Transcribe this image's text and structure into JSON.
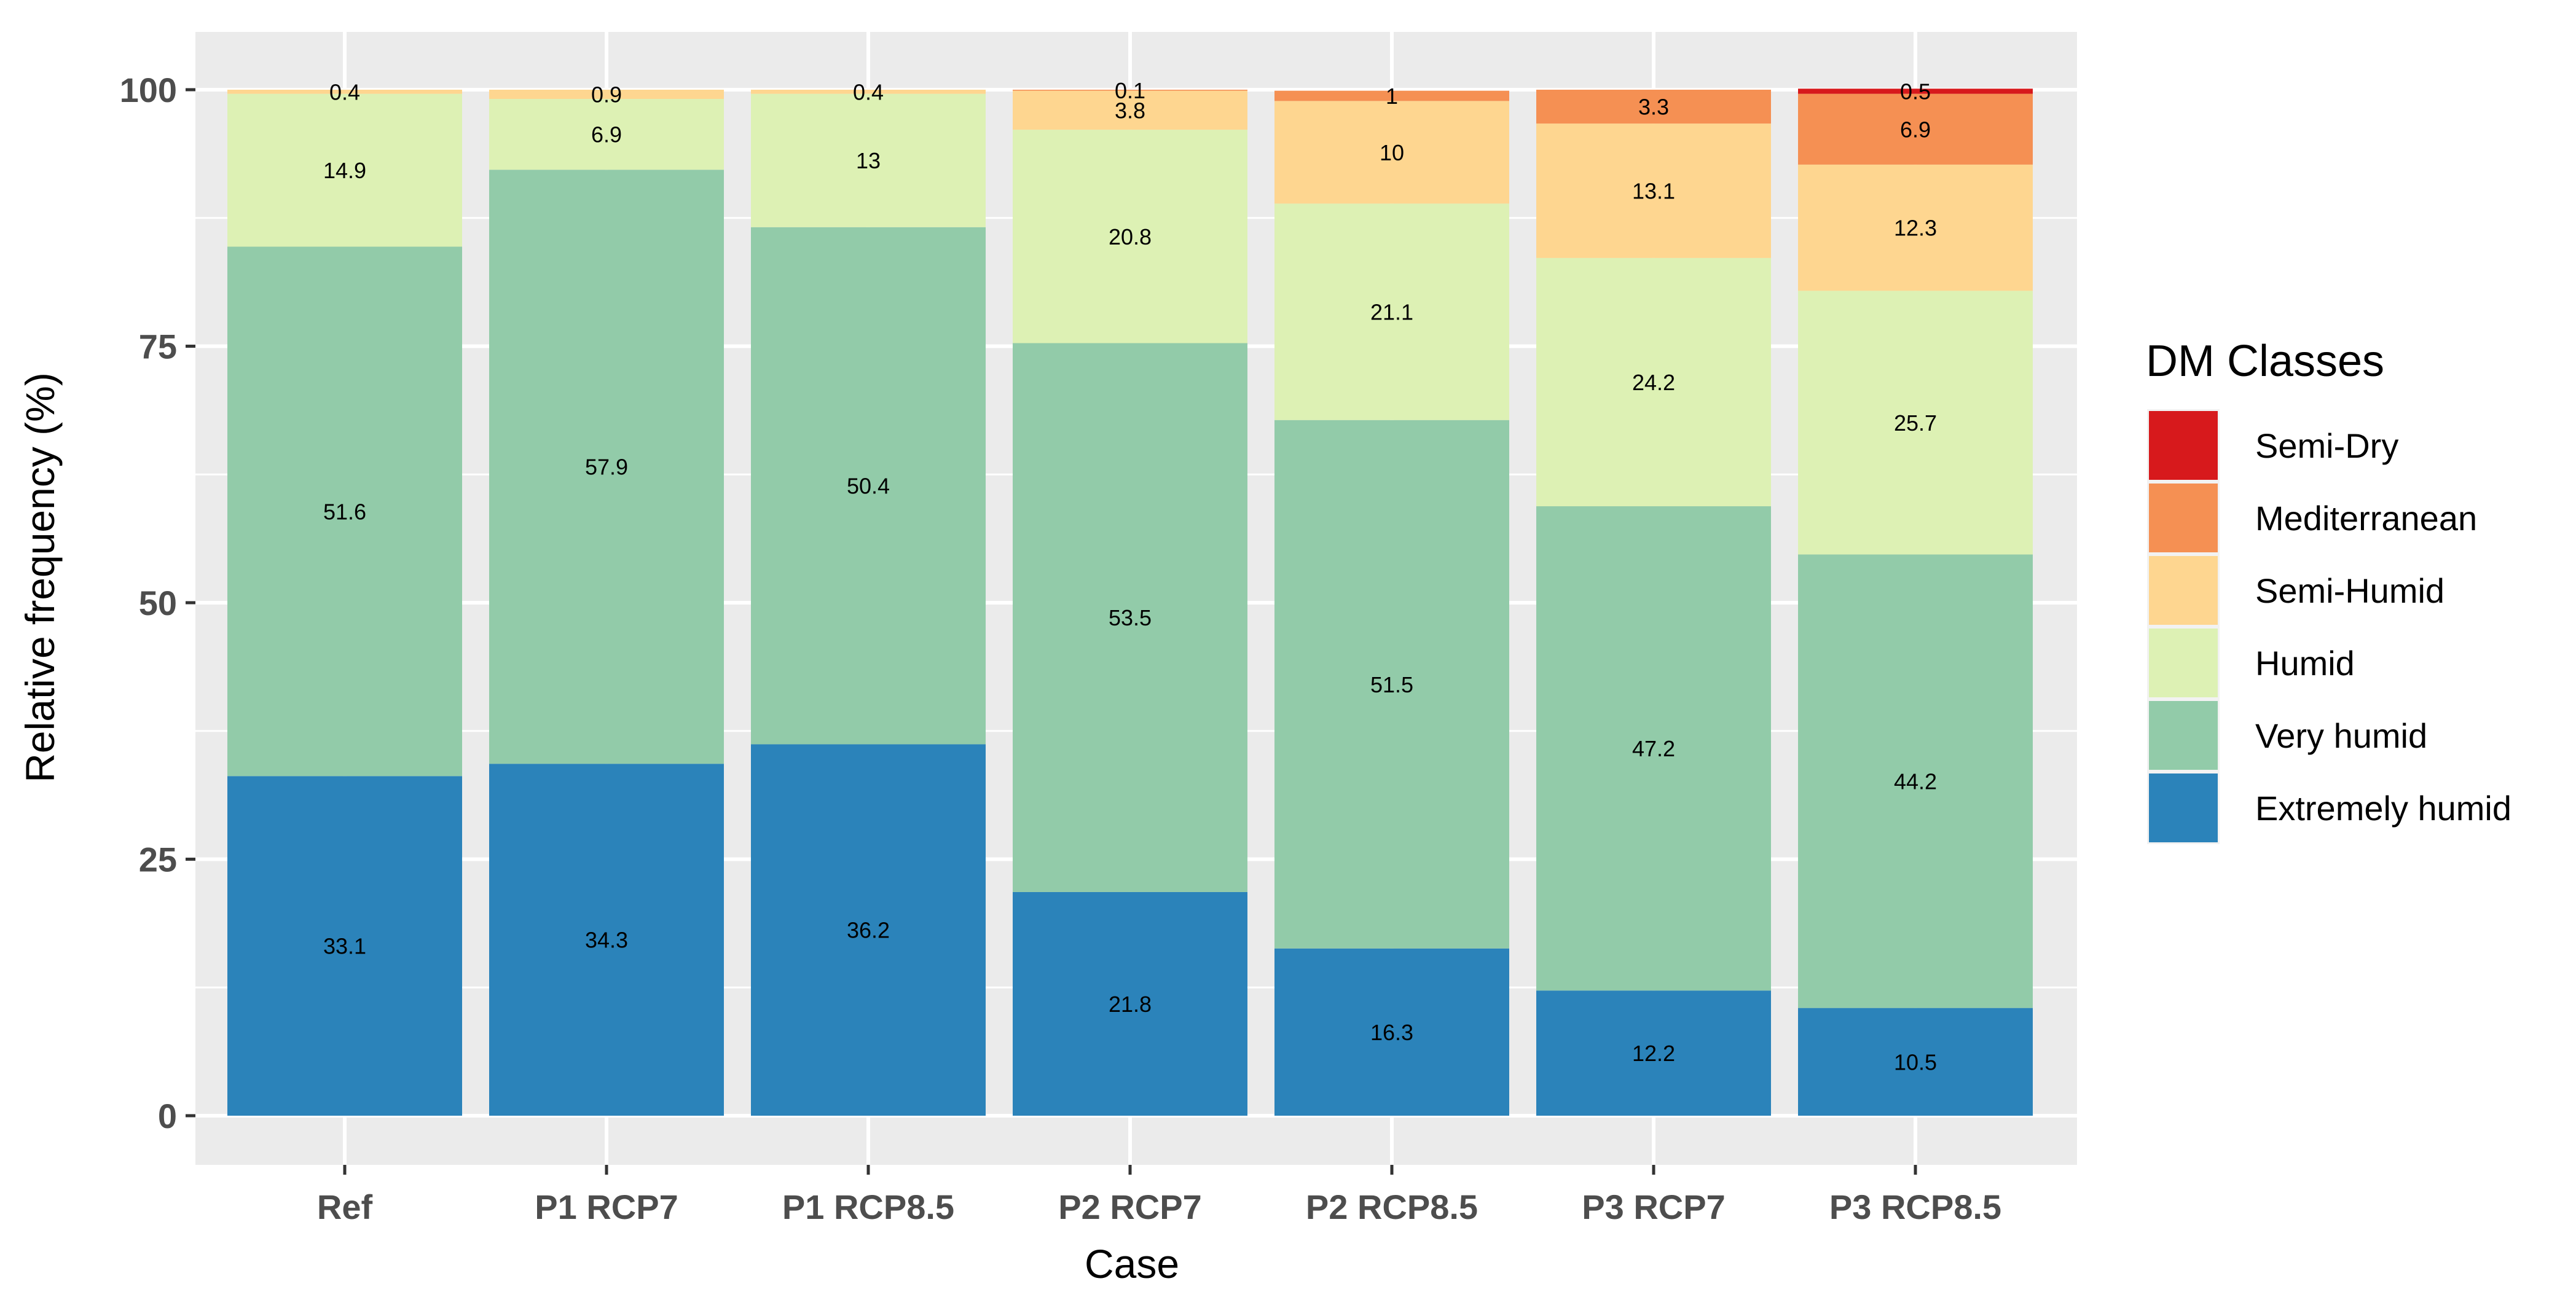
{
  "chart_data": {
    "type": "bar",
    "stacked": true,
    "xlabel": "Case",
    "ylabel": "Relative frequency (%)",
    "ylim": [
      0,
      100
    ],
    "yticks": [
      0,
      25,
      50,
      75,
      100
    ],
    "grid": true,
    "legend_title": "DM Classes",
    "legend_position": "right",
    "categories": [
      "Ref",
      "P1 RCP7",
      "P1 RCP8.5",
      "P2 RCP7",
      "P2 RCP8.5",
      "P3 RCP7",
      "P3 RCP8.5"
    ],
    "series": [
      {
        "name": "Extremely humid",
        "color": "#2b83ba",
        "values": [
          33.1,
          34.3,
          36.2,
          21.8,
          16.3,
          12.2,
          10.5
        ],
        "labels": [
          "33.1",
          "34.3",
          "36.2",
          "21.8",
          "16.3",
          "12.2",
          "10.5"
        ]
      },
      {
        "name": "Very humid",
        "color": "#92cba9",
        "values": [
          51.6,
          57.9,
          50.4,
          53.5,
          51.5,
          47.2,
          44.2
        ],
        "labels": [
          "51.6",
          "57.9",
          "50.4",
          "53.5",
          "51.5",
          "47.2",
          "44.2"
        ]
      },
      {
        "name": "Humid",
        "color": "#ddf1b4",
        "values": [
          14.9,
          6.9,
          13,
          20.8,
          21.1,
          24.2,
          25.7
        ],
        "labels": [
          "14.9",
          "6.9",
          "13",
          "20.8",
          "21.1",
          "24.2",
          "25.7"
        ]
      },
      {
        "name": "Semi-Humid",
        "color": "#fed690",
        "values": [
          0.4,
          0.9,
          0.4,
          3.8,
          10,
          13.1,
          12.3
        ],
        "labels": [
          "0.4",
          "0.9",
          "0.4",
          "3.8",
          "10",
          "13.1",
          "12.3"
        ]
      },
      {
        "name": "Mediterranean",
        "color": "#f59053",
        "values": [
          0,
          0,
          0,
          0.1,
          1,
          3.3,
          6.9
        ],
        "labels": [
          "",
          "",
          "",
          "0.1",
          "1",
          "3.3",
          "6.9"
        ]
      },
      {
        "name": "Semi-Dry",
        "color": "#d7191c",
        "values": [
          0,
          0,
          0,
          0,
          0,
          0,
          0.5
        ],
        "labels": [
          "",
          "",
          "",
          "",
          "",
          "",
          "0.5"
        ]
      }
    ]
  }
}
